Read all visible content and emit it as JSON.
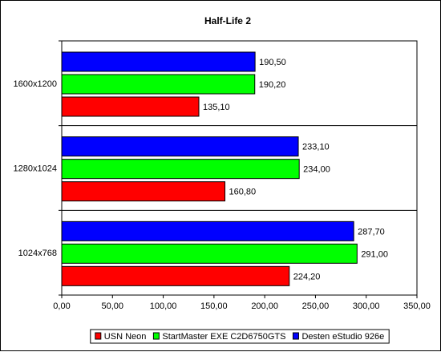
{
  "chart_data": {
    "type": "bar",
    "orientation": "horizontal",
    "title": "Half-Life 2",
    "categories": [
      "1600x1200",
      "1280x1024",
      "1024x768"
    ],
    "series": [
      {
        "name": "Desten eStudio 926e",
        "color": "#0000FF",
        "values": [
          190.5,
          233.1,
          287.7
        ],
        "labels": [
          "190,50",
          "233,10",
          "287,70"
        ]
      },
      {
        "name": "StartMaster EXE C2D6750GTS",
        "color": "#00FF00",
        "values": [
          190.2,
          234.0,
          291.0
        ],
        "labels": [
          "190,20",
          "234,00",
          "291,00"
        ]
      },
      {
        "name": "USN Neon",
        "color": "#FF0000",
        "values": [
          135.1,
          160.8,
          224.2
        ],
        "labels": [
          "135,10",
          "160,80",
          "224,20"
        ]
      }
    ],
    "xlim": [
      0,
      350
    ],
    "xticks": [
      0,
      50,
      100,
      150,
      200,
      250,
      300,
      350
    ],
    "xtick_labels": [
      "0,00",
      "50,00",
      "100,00",
      "150,00",
      "200,00",
      "250,00",
      "300,00",
      "350,00"
    ],
    "legend_order": [
      "USN Neon",
      "StartMaster EXE C2D6750GTS",
      "Desten eStudio 926e"
    ],
    "legend_position": "bottom",
    "grid": false
  }
}
